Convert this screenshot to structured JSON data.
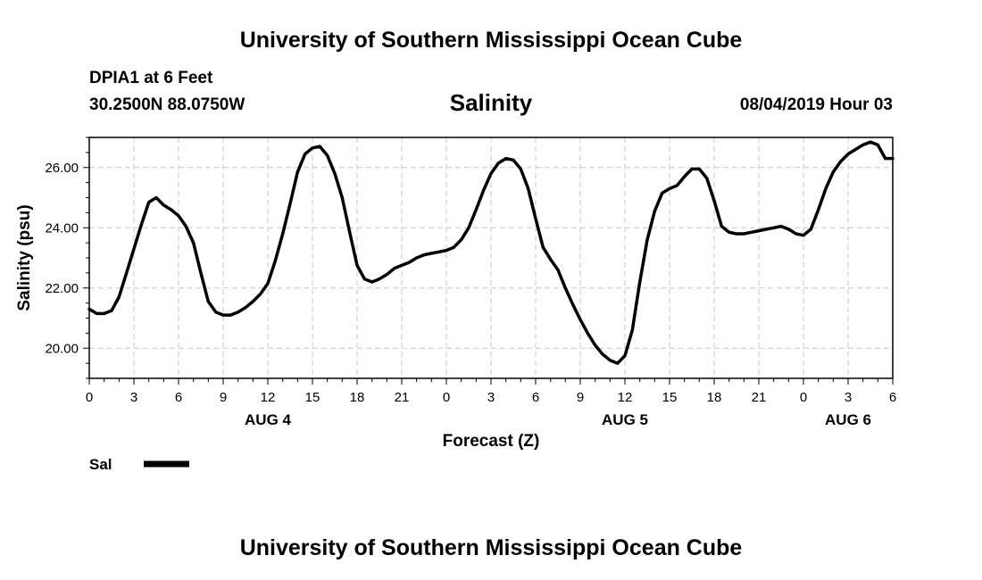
{
  "header": {
    "title_top": "University of Southern Mississippi Ocean Cube",
    "station": "DPIA1 at 6 Feet",
    "coordinates": "30.2500N 88.0750W",
    "subtitle": "Salinity",
    "datetime": "08/04/2019 Hour 03"
  },
  "footer": {
    "title_bottom": "University of Southern Mississippi Ocean Cube"
  },
  "chart_data": {
    "type": "line",
    "title": "Salinity",
    "xlabel": "Forecast (Z)",
    "ylabel": "Salinity (psu)",
    "xlim": [
      0,
      54
    ],
    "ylim": [
      19,
      27
    ],
    "grid": true,
    "x_ticks": [
      {
        "x": 0,
        "label": "0"
      },
      {
        "x": 3,
        "label": "3"
      },
      {
        "x": 6,
        "label": "6"
      },
      {
        "x": 9,
        "label": "9"
      },
      {
        "x": 12,
        "label": "12"
      },
      {
        "x": 15,
        "label": "15"
      },
      {
        "x": 18,
        "label": "18"
      },
      {
        "x": 21,
        "label": "21"
      },
      {
        "x": 24,
        "label": "0"
      },
      {
        "x": 27,
        "label": "3"
      },
      {
        "x": 30,
        "label": "6"
      },
      {
        "x": 33,
        "label": "9"
      },
      {
        "x": 36,
        "label": "12"
      },
      {
        "x": 39,
        "label": "15"
      },
      {
        "x": 42,
        "label": "18"
      },
      {
        "x": 45,
        "label": "21"
      },
      {
        "x": 48,
        "label": "0"
      },
      {
        "x": 51,
        "label": "3"
      },
      {
        "x": 54,
        "label": "6"
      }
    ],
    "y_ticks": [
      {
        "y": 20,
        "label": "20.00"
      },
      {
        "y": 22,
        "label": "22.00"
      },
      {
        "y": 24,
        "label": "24.00"
      },
      {
        "y": 26,
        "label": "26.00"
      }
    ],
    "day_labels": [
      {
        "x": 12,
        "label": "AUG 4"
      },
      {
        "x": 36,
        "label": "AUG 5"
      },
      {
        "x": 51,
        "label": "AUG 6"
      }
    ],
    "legend": {
      "placement": "bottom-left",
      "label": "Sal"
    },
    "series": [
      {
        "name": "Sal",
        "x": [
          0,
          0.5,
          1,
          1.5,
          2,
          2.5,
          3,
          3.5,
          4,
          4.5,
          5,
          5.5,
          6,
          6.5,
          7,
          7.5,
          8,
          8.5,
          9,
          9.5,
          10,
          10.5,
          11,
          11.5,
          12,
          12.5,
          13,
          13.5,
          14,
          14.5,
          15,
          15.5,
          16,
          16.5,
          17,
          17.5,
          18,
          18.5,
          19,
          19.5,
          20,
          20.5,
          21,
          21.5,
          22,
          22.5,
          23,
          23.5,
          24,
          24.5,
          25,
          25.5,
          26,
          26.5,
          27,
          27.5,
          28,
          28.5,
          29,
          29.5,
          30,
          30.5,
          31,
          31.5,
          32,
          32.5,
          33,
          33.5,
          34,
          34.5,
          35,
          35.5,
          36,
          36.5,
          37,
          37.5,
          38,
          38.5,
          39,
          39.5,
          40,
          40.5,
          41,
          41.5,
          42,
          42.5,
          43,
          43.5,
          44,
          44.5,
          45,
          45.5,
          46,
          46.5,
          47,
          47.5,
          48,
          48.5,
          49,
          49.5,
          50,
          50.5,
          51,
          51.5,
          52,
          52.5,
          53,
          53.5,
          54
        ],
        "values": [
          21.3,
          21.15,
          21.15,
          21.25,
          21.7,
          22.5,
          23.3,
          24.1,
          24.85,
          25.0,
          24.75,
          24.6,
          24.4,
          24.05,
          23.5,
          22.5,
          21.55,
          21.2,
          21.1,
          21.1,
          21.2,
          21.35,
          21.55,
          21.8,
          22.15,
          22.9,
          23.8,
          24.8,
          25.85,
          26.45,
          26.65,
          26.7,
          26.4,
          25.8,
          25.0,
          23.85,
          22.75,
          22.3,
          22.2,
          22.3,
          22.45,
          22.65,
          22.75,
          22.85,
          23.0,
          23.1,
          23.15,
          23.2,
          23.25,
          23.35,
          23.6,
          24.0,
          24.6,
          25.25,
          25.8,
          26.15,
          26.3,
          26.25,
          25.95,
          25.3,
          24.3,
          23.35,
          22.95,
          22.6,
          22.0,
          21.45,
          20.95,
          20.5,
          20.1,
          19.8,
          19.6,
          19.5,
          19.75,
          20.6,
          22.2,
          23.6,
          24.55,
          25.15,
          25.3,
          25.4,
          25.7,
          25.95,
          25.95,
          25.65,
          24.9,
          24.05,
          23.85,
          23.8,
          23.8,
          23.85,
          23.9,
          23.95,
          24.0,
          24.05,
          23.95,
          23.8,
          23.75,
          23.95,
          24.6,
          25.3,
          25.85,
          26.2,
          26.45,
          26.6,
          26.75,
          26.85,
          26.75,
          26.3,
          26.3
        ]
      }
    ]
  }
}
